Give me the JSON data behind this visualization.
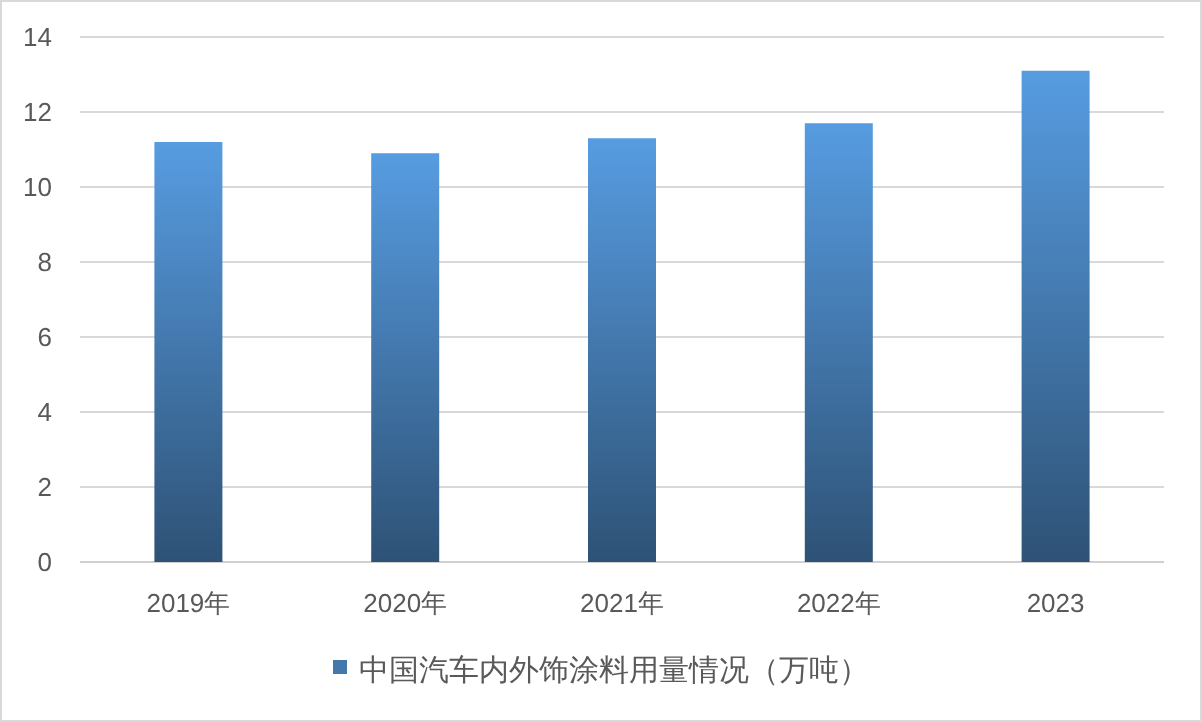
{
  "chart_data": {
    "type": "bar",
    "categories": [
      "2019年",
      "2020年",
      "2021年",
      "2022年",
      "2023"
    ],
    "series": [
      {
        "name": "中国汽车内外饰涂料用量情况（万吨）",
        "color": "#4378ad",
        "values": [
          11.2,
          10.9,
          11.3,
          11.7,
          13.1
        ]
      }
    ],
    "ylim": [
      0,
      14
    ],
    "yticks": [
      0,
      2,
      4,
      6,
      8,
      10,
      12,
      14
    ],
    "grid": "y",
    "legend": "bottom"
  }
}
